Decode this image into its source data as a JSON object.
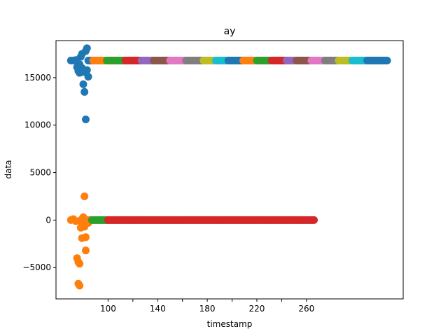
{
  "chart_data": {
    "type": "scatter",
    "title": "ay",
    "xlabel": "timestamp",
    "ylabel": "data",
    "xlim": [
      58,
      338
    ],
    "ylim": [
      -8300,
      18900
    ],
    "x_ticks": [
      100,
      120,
      140,
      160,
      180,
      200,
      220,
      240,
      260
    ],
    "x_tick_labels": [
      "100",
      "",
      "140",
      "",
      "180",
      "",
      "220",
      "",
      "260"
    ],
    "y_ticks": [
      -5000,
      0,
      5000,
      10000,
      15000
    ],
    "y_tick_labels": [
      "−5000",
      "0",
      "5000",
      "10000",
      "15000"
    ],
    "grid": false,
    "legend": "none",
    "colors": {
      "blue": "#1f77b4",
      "orange": "#ff7f0e",
      "green": "#2ca02c",
      "red": "#d62728",
      "purple": "#9467bd",
      "brown": "#8c564b",
      "pink": "#e377c2",
      "gray": "#7f7f7f",
      "olive": "#bcbd22",
      "cyan": "#17becf"
    },
    "series": [
      {
        "color": "blue",
        "points": [
          [
            70,
            16800
          ],
          [
            72,
            16800
          ],
          [
            74,
            16850
          ],
          [
            75,
            16100
          ],
          [
            76,
            15700
          ],
          [
            77,
            15500
          ],
          [
            77,
            16400
          ],
          [
            78,
            17200
          ],
          [
            79,
            17500
          ],
          [
            79,
            16000
          ],
          [
            80,
            14300
          ],
          [
            80,
            15600
          ],
          [
            81,
            13500
          ],
          [
            82,
            17800
          ],
          [
            82,
            10600
          ],
          [
            83,
            18100
          ],
          [
            83,
            15800
          ],
          [
            84,
            15100
          ],
          [
            84,
            16800
          ],
          [
            86,
            16800
          ]
        ]
      },
      {
        "color": "orange",
        "points": [
          [
            70,
            0
          ],
          [
            72,
            100
          ],
          [
            74,
            -100
          ],
          [
            75,
            -4000
          ],
          [
            76,
            -6700
          ],
          [
            76,
            -4400
          ],
          [
            77,
            -6900
          ],
          [
            77,
            -4600
          ],
          [
            78,
            0
          ],
          [
            78,
            -800
          ],
          [
            79,
            -500
          ],
          [
            79,
            -1900
          ],
          [
            80,
            300
          ],
          [
            80,
            -200
          ],
          [
            81,
            2500
          ],
          [
            81,
            -700
          ],
          [
            82,
            -1800
          ],
          [
            82,
            -3200
          ],
          [
            83,
            0
          ],
          [
            84,
            -300
          ],
          [
            85,
            0
          ],
          [
            86,
            0
          ]
        ]
      },
      {
        "color": "orange",
        "x_range": [
          88,
          98
        ],
        "y": 16800
      },
      {
        "color": "green",
        "x_range": [
          87,
          100
        ],
        "y": 0
      },
      {
        "color": "red",
        "x_range": [
          100,
          266
        ],
        "y": 0
      },
      {
        "color": "green",
        "x_range": [
          99,
          113
        ],
        "y": 16800
      },
      {
        "color": "red",
        "x_range": [
          114,
          126
        ],
        "y": 16800
      },
      {
        "color": "purple",
        "x_range": [
          127,
          136
        ],
        "y": 16800
      },
      {
        "color": "brown",
        "x_range": [
          137,
          149
        ],
        "y": 16800
      },
      {
        "color": "pink",
        "x_range": [
          150,
          162
        ],
        "y": 16800
      },
      {
        "color": "gray",
        "x_range": [
          163,
          176
        ],
        "y": 16800
      },
      {
        "color": "olive",
        "x_range": [
          177,
          186
        ],
        "y": 16800
      },
      {
        "color": "cyan",
        "x_range": [
          187,
          196
        ],
        "y": 16800
      },
      {
        "color": "blue",
        "x_range": [
          197,
          208
        ],
        "y": 16800
      },
      {
        "color": "orange",
        "x_range": [
          209,
          219
        ],
        "y": 16800
      },
      {
        "color": "green",
        "x_range": [
          220,
          231
        ],
        "y": 16800
      },
      {
        "color": "red",
        "x_range": [
          232,
          243
        ],
        "y": 16800
      },
      {
        "color": "purple",
        "x_range": [
          244,
          251
        ],
        "y": 16800
      },
      {
        "color": "brown",
        "x_range": [
          252,
          263
        ],
        "y": 16800
      },
      {
        "color": "pink",
        "x_range": [
          264,
          274
        ],
        "y": 16800
      },
      {
        "color": "gray",
        "x_range": [
          275,
          285
        ],
        "y": 16800
      },
      {
        "color": "olive",
        "x_range": [
          286,
          296
        ],
        "y": 16800
      },
      {
        "color": "cyan",
        "x_range": [
          297,
          308
        ],
        "y": 16800
      },
      {
        "color": "blue",
        "x_range": [
          309,
          325
        ],
        "y": 16800
      }
    ]
  }
}
